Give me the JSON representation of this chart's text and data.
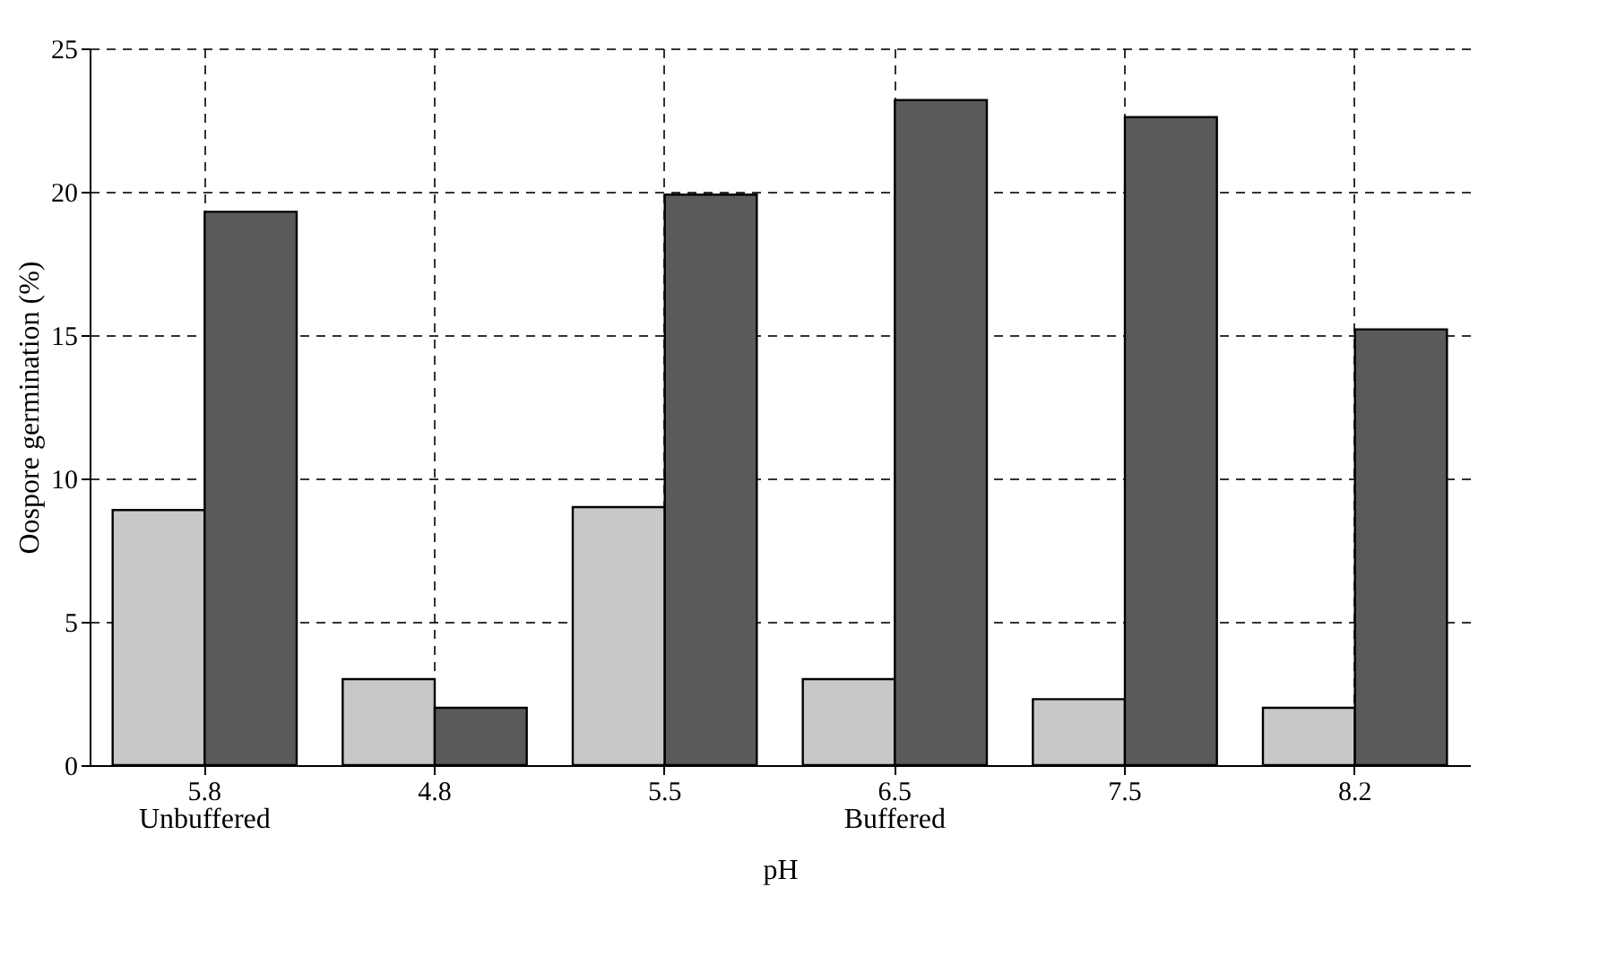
{
  "chart_data": {
    "type": "bar",
    "xlabel": "pH",
    "ylabel": "Oospore germination (%)",
    "categories": [
      "5.8",
      "4.8",
      "5.5",
      "6.5",
      "7.5",
      "8.2"
    ],
    "series": [
      {
        "color": "#c8c8c8",
        "values": [
          8.9,
          3.0,
          9.0,
          3.0,
          2.3,
          2.0
        ]
      },
      {
        "color": "#5a5a5a",
        "values": [
          19.3,
          2.0,
          19.9,
          23.2,
          22.6,
          15.2
        ]
      }
    ],
    "ylim": [
      0,
      25
    ],
    "yticks": [
      0,
      5,
      10,
      15,
      20,
      25
    ],
    "grid": true,
    "legend": false,
    "annotations": [
      "Unbuffered",
      "Buffered"
    ]
  }
}
